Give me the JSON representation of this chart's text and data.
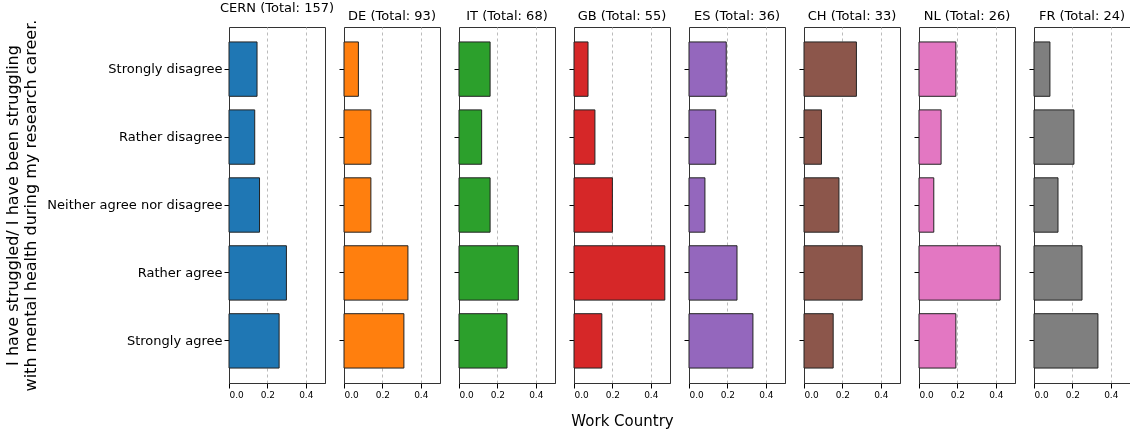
{
  "chart_data": [
    {
      "type": "bar",
      "orientation": "horizontal",
      "title": "CERN (Total: 157)",
      "ylabel": "I have struggled/ I have been struggling with mental health during my research career.",
      "categories": [
        "Strongly disagree",
        "Rather disagree",
        "Neither agree nor disagree",
        "Rather agree",
        "Strongly agree"
      ],
      "values": [
        0.146,
        0.134,
        0.159,
        0.299,
        0.261
      ],
      "color": "#1f77b4",
      "xlim": [
        0,
        0.5
      ],
      "xticks": [
        {
          "value": 0,
          "label": "0.0"
        },
        {
          "value": 0.2,
          "label": "0.2"
        },
        {
          "value": 0.4,
          "label": "0.4"
        }
      ],
      "grid": "x"
    },
    {
      "type": "bar",
      "orientation": "horizontal",
      "title": "DE (Total: 93)",
      "categories": [
        null,
        null,
        null,
        null,
        null
      ],
      "values": [
        0.075,
        0.14,
        0.14,
        0.333,
        0.312
      ],
      "color": "#ff7f0e",
      "xlim": [
        0,
        0.5
      ],
      "xticks": [
        {
          "value": 0,
          "label": "0.0"
        },
        {
          "value": 0.2,
          "label": "0.2"
        },
        {
          "value": 0.4,
          "label": "0.4"
        }
      ],
      "grid": "x"
    },
    {
      "type": "bar",
      "orientation": "horizontal",
      "title": "IT (Total: 68)",
      "categories": [
        null,
        null,
        null,
        null,
        null
      ],
      "values": [
        0.162,
        0.118,
        0.162,
        0.309,
        0.25
      ],
      "color": "#2ca02c",
      "xlim": [
        0,
        0.5
      ],
      "xticks": [
        {
          "value": 0,
          "label": "0.0"
        },
        {
          "value": 0.2,
          "label": "0.2"
        },
        {
          "value": 0.4,
          "label": "0.4"
        }
      ],
      "grid": "x"
    },
    {
      "type": "bar",
      "orientation": "horizontal",
      "title": "GB (Total: 55)",
      "xlabel": "Work Country",
      "categories": [
        null,
        null,
        null,
        null,
        null
      ],
      "values": [
        0.073,
        0.109,
        0.2,
        0.473,
        0.145
      ],
      "color": "#d62728",
      "xlim": [
        0,
        0.5
      ],
      "xticks": [
        {
          "value": 0,
          "label": "0.0"
        },
        {
          "value": 0.2,
          "label": "0.2"
        },
        {
          "value": 0.4,
          "label": "0.4"
        }
      ],
      "grid": "x"
    },
    {
      "type": "bar",
      "orientation": "horizontal",
      "title": "ES (Total: 36)",
      "categories": [
        null,
        null,
        null,
        null,
        null
      ],
      "values": [
        0.194,
        0.139,
        0.083,
        0.25,
        0.333
      ],
      "color": "#9467bd",
      "xlim": [
        0,
        0.5
      ],
      "xticks": [
        {
          "value": 0,
          "label": "0.0"
        },
        {
          "value": 0.2,
          "label": "0.2"
        },
        {
          "value": 0.4,
          "label": "0.4"
        }
      ],
      "grid": "x"
    },
    {
      "type": "bar",
      "orientation": "horizontal",
      "title": "CH (Total: 33)",
      "categories": [
        null,
        null,
        null,
        null,
        null
      ],
      "values": [
        0.273,
        0.091,
        0.182,
        0.303,
        0.152
      ],
      "color": "#8c564b",
      "xlim": [
        0,
        0.5
      ],
      "xticks": [
        {
          "value": 0,
          "label": "0.0"
        },
        {
          "value": 0.2,
          "label": "0.2"
        },
        {
          "value": 0.4,
          "label": "0.4"
        }
      ],
      "grid": "x"
    },
    {
      "type": "bar",
      "orientation": "horizontal",
      "title": "NL (Total: 26)",
      "categories": [
        null,
        null,
        null,
        null,
        null
      ],
      "values": [
        0.192,
        0.115,
        0.077,
        0.423,
        0.192
      ],
      "color": "#e377c2",
      "xlim": [
        0,
        0.5
      ],
      "xticks": [
        {
          "value": 0,
          "label": "0.0"
        },
        {
          "value": 0.2,
          "label": "0.2"
        },
        {
          "value": 0.4,
          "label": "0.4"
        }
      ],
      "grid": "x"
    },
    {
      "type": "bar",
      "orientation": "horizontal",
      "title": "FR (Total: 24)",
      "categories": [
        null,
        null,
        null,
        null,
        null
      ],
      "values": [
        0.083,
        0.208,
        0.125,
        0.25,
        0.333
      ],
      "color": "#7f7f7f",
      "xlim": [
        0,
        0.5
      ],
      "xticks": [
        {
          "value": 0,
          "label": "0.0"
        },
        {
          "value": 0.2,
          "label": "0.2"
        },
        {
          "value": 0.4,
          "label": "0.4"
        }
      ],
      "grid": "x"
    }
  ]
}
